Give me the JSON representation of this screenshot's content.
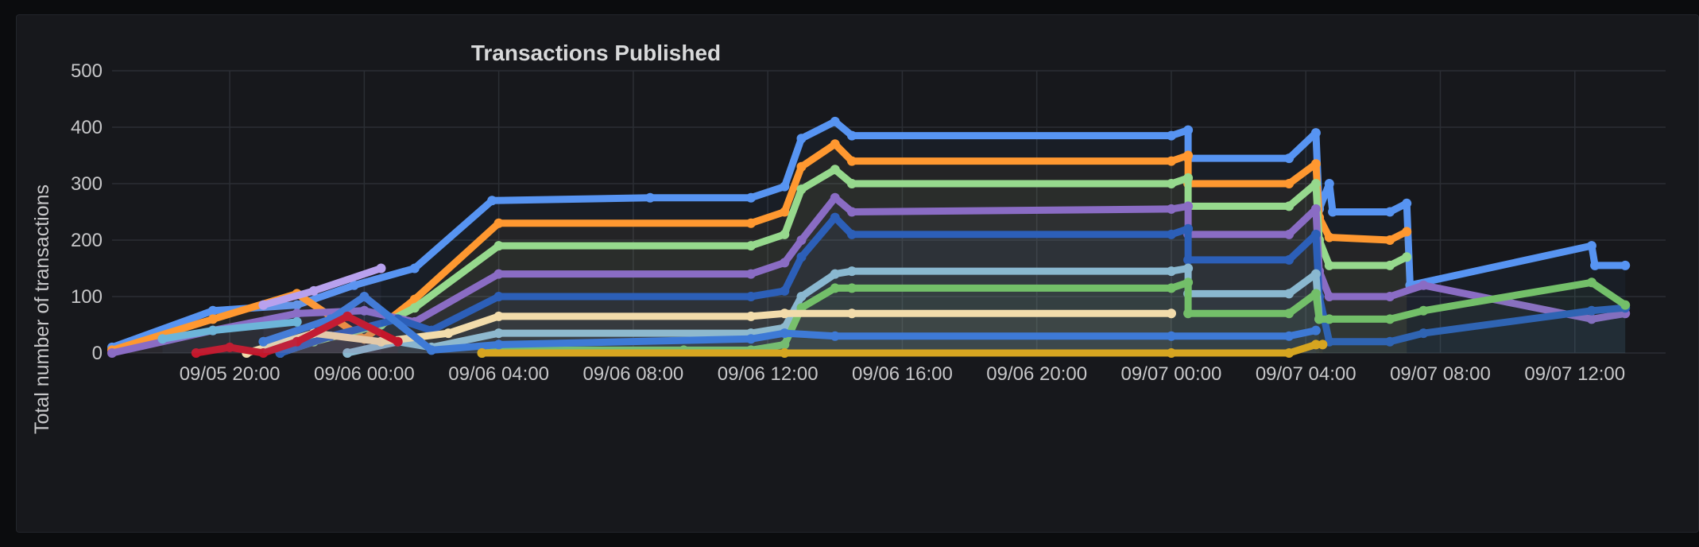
{
  "panel": {
    "title": "Transactions Published"
  },
  "chart_data": {
    "type": "line",
    "title": "Transactions Published",
    "xlabel": "",
    "ylabel": "Total number of transactions",
    "ylim": [
      0,
      500
    ],
    "xlim": [
      "09/05 16:30",
      "09/07 14:40"
    ],
    "yticks": [
      "0",
      "100",
      "200",
      "300",
      "400",
      "500"
    ],
    "xticks": [
      "09/05 20:00",
      "09/06 00:00",
      "09/06 04:00",
      "09/06 08:00",
      "09/06 12:00",
      "09/06 16:00",
      "09/06 20:00",
      "09/07 00:00",
      "09/07 04:00",
      "09/07 08:00",
      "09/07 12:00"
    ],
    "xtick_hours": [
      3.5,
      7.5,
      11.5,
      15.5,
      19.5,
      23.5,
      27.5,
      31.5,
      35.5,
      39.5,
      43.5
    ],
    "x_start": "09/05 16:30",
    "grid": true,
    "legend": "none",
    "series": [
      {
        "color": "#5794f2",
        "points": [
          [
            0.0,
            10
          ],
          [
            3.0,
            75
          ],
          [
            5.5,
            85
          ],
          [
            7.2,
            120
          ],
          [
            9.0,
            150
          ],
          [
            11.3,
            270
          ],
          [
            16.0,
            275
          ],
          [
            19.0,
            275
          ],
          [
            20.0,
            295
          ],
          [
            20.5,
            380
          ],
          [
            21.5,
            410
          ],
          [
            22.0,
            385
          ],
          [
            31.5,
            385
          ],
          [
            32.0,
            395
          ],
          [
            32.0,
            345
          ],
          [
            35.0,
            345
          ],
          [
            35.8,
            390
          ],
          [
            35.9,
            255
          ],
          [
            36.2,
            300
          ],
          [
            36.3,
            250
          ],
          [
            38.0,
            250
          ],
          [
            38.5,
            265
          ],
          [
            38.6,
            120
          ],
          [
            44.0,
            190
          ],
          [
            44.1,
            155
          ],
          [
            45.0,
            155
          ]
        ]
      },
      {
        "color": "#ff9830",
        "points": [
          [
            0.0,
            5
          ],
          [
            3.0,
            60
          ],
          [
            5.5,
            105
          ],
          [
            7.5,
            25
          ],
          [
            9.0,
            95
          ],
          [
            11.5,
            230
          ],
          [
            19.0,
            230
          ],
          [
            20.0,
            250
          ],
          [
            20.5,
            330
          ],
          [
            21.5,
            370
          ],
          [
            22.0,
            340
          ],
          [
            31.5,
            340
          ],
          [
            32.0,
            350
          ],
          [
            32.0,
            300
          ],
          [
            35.0,
            300
          ],
          [
            35.8,
            335
          ],
          [
            35.9,
            240
          ],
          [
            36.2,
            205
          ],
          [
            38.0,
            200
          ],
          [
            38.5,
            215
          ]
        ]
      },
      {
        "color": "#96d98d",
        "points": [
          [
            5.0,
            0
          ],
          [
            6.0,
            20
          ],
          [
            8.0,
            50
          ],
          [
            9.0,
            80
          ],
          [
            11.5,
            190
          ],
          [
            19.0,
            190
          ],
          [
            20.0,
            210
          ],
          [
            20.5,
            290
          ],
          [
            21.5,
            325
          ],
          [
            22.0,
            300
          ],
          [
            31.5,
            300
          ],
          [
            32.0,
            310
          ],
          [
            32.0,
            260
          ],
          [
            35.0,
            260
          ],
          [
            35.8,
            300
          ],
          [
            35.9,
            200
          ],
          [
            36.2,
            155
          ],
          [
            38.0,
            155
          ],
          [
            38.5,
            170
          ]
        ]
      },
      {
        "color": "#8a6cc4",
        "points": [
          [
            0.0,
            0
          ],
          [
            3.0,
            40
          ],
          [
            5.5,
            70
          ],
          [
            7.5,
            75
          ],
          [
            9.0,
            55
          ],
          [
            11.5,
            140
          ],
          [
            19.0,
            140
          ],
          [
            20.0,
            160
          ],
          [
            20.5,
            200
          ],
          [
            21.5,
            275
          ],
          [
            22.0,
            250
          ],
          [
            31.5,
            255
          ],
          [
            32.0,
            260
          ],
          [
            32.0,
            210
          ],
          [
            35.0,
            210
          ],
          [
            35.8,
            255
          ],
          [
            35.9,
            145
          ],
          [
            36.2,
            100
          ],
          [
            38.0,
            100
          ],
          [
            39.0,
            120
          ],
          [
            44.0,
            60
          ],
          [
            45.0,
            70
          ]
        ]
      },
      {
        "color": "#2c5fb8",
        "points": [
          [
            5.0,
            0
          ],
          [
            6.5,
            30
          ],
          [
            8.5,
            60
          ],
          [
            9.5,
            40
          ],
          [
            11.5,
            100
          ],
          [
            19.0,
            100
          ],
          [
            20.0,
            110
          ],
          [
            20.5,
            170
          ],
          [
            21.5,
            240
          ],
          [
            22.0,
            210
          ],
          [
            31.5,
            210
          ],
          [
            32.0,
            220
          ],
          [
            32.0,
            165
          ],
          [
            35.0,
            165
          ],
          [
            35.8,
            210
          ],
          [
            35.9,
            100
          ],
          [
            36.2,
            20
          ],
          [
            38.0,
            20
          ],
          [
            39.0,
            35
          ],
          [
            44.0,
            75
          ],
          [
            45.0,
            80
          ]
        ]
      },
      {
        "color": "#8ab8d0",
        "points": [
          [
            7.0,
            0
          ],
          [
            8.5,
            20
          ],
          [
            9.5,
            10
          ],
          [
            11.5,
            35
          ],
          [
            19.0,
            35
          ],
          [
            20.0,
            45
          ],
          [
            20.5,
            100
          ],
          [
            21.5,
            140
          ],
          [
            22.0,
            145
          ],
          [
            31.5,
            145
          ],
          [
            32.0,
            150
          ],
          [
            32.0,
            105
          ],
          [
            35.0,
            105
          ],
          [
            35.8,
            140
          ],
          [
            35.9,
            60
          ]
        ]
      },
      {
        "color": "#73bf69",
        "points": [
          [
            11.0,
            0
          ],
          [
            12.0,
            5
          ],
          [
            17.0,
            5
          ],
          [
            19.0,
            5
          ],
          [
            20.0,
            15
          ],
          [
            20.5,
            80
          ],
          [
            21.5,
            115
          ],
          [
            22.0,
            115
          ],
          [
            31.5,
            115
          ],
          [
            32.0,
            125
          ],
          [
            32.0,
            70
          ],
          [
            35.0,
            70
          ],
          [
            35.8,
            105
          ],
          [
            35.9,
            60
          ],
          [
            36.2,
            60
          ],
          [
            38.0,
            60
          ],
          [
            39.0,
            75
          ],
          [
            44.0,
            125
          ],
          [
            45.0,
            85
          ]
        ]
      },
      {
        "color": "#f2dcab",
        "points": [
          [
            4.0,
            0
          ],
          [
            6.0,
            35
          ],
          [
            8.0,
            20
          ],
          [
            10.0,
            35
          ],
          [
            11.5,
            65
          ],
          [
            19.0,
            65
          ],
          [
            20.0,
            70
          ],
          [
            22.0,
            70
          ],
          [
            31.5,
            70
          ]
        ]
      },
      {
        "color": "#3e7ad6",
        "points": [
          [
            4.5,
            20
          ],
          [
            6.5,
            60
          ],
          [
            7.5,
            100
          ],
          [
            9.5,
            5
          ],
          [
            11.5,
            15
          ],
          [
            19.0,
            25
          ],
          [
            20.0,
            35
          ],
          [
            21.5,
            30
          ],
          [
            31.5,
            30
          ],
          [
            35.0,
            30
          ],
          [
            35.8,
            40
          ]
        ]
      },
      {
        "color": "#c4162a",
        "points": [
          [
            2.5,
            0
          ],
          [
            3.5,
            10
          ],
          [
            4.5,
            0
          ],
          [
            5.5,
            20
          ],
          [
            7.0,
            65
          ],
          [
            8.5,
            20
          ]
        ]
      },
      {
        "color": "#b8a1ee",
        "points": [
          [
            4.5,
            85
          ],
          [
            6.0,
            110
          ],
          [
            8.0,
            150
          ]
        ]
      },
      {
        "color": "#6db5d9",
        "points": [
          [
            1.5,
            25
          ],
          [
            3.0,
            40
          ],
          [
            5.5,
            55
          ]
        ]
      },
      {
        "color": "#d6a520",
        "points": [
          [
            11.0,
            0
          ],
          [
            20.0,
            0
          ],
          [
            31.5,
            0
          ],
          [
            35.0,
            0
          ],
          [
            35.8,
            15
          ],
          [
            36.0,
            15
          ]
        ]
      }
    ]
  }
}
